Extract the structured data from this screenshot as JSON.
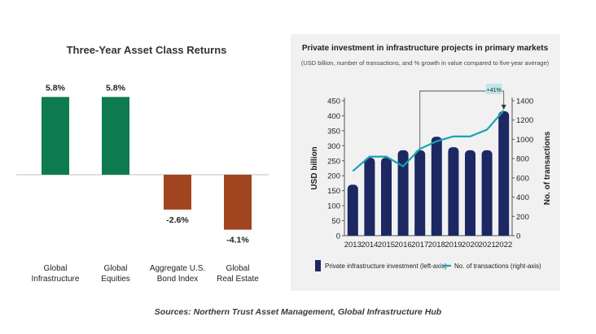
{
  "chart_data": [
    {
      "type": "bar",
      "title": "Three-Year Asset Class Returns",
      "categories": [
        "Global\nInfrastructure",
        "Global\nEquities",
        "Aggregate U.S.\nBond Index",
        "Global\nReal Estate"
      ],
      "values": [
        5.8,
        5.8,
        -2.6,
        -4.1
      ],
      "value_labels": [
        "5.8%",
        "5.8%",
        "-2.6%",
        "-4.1%"
      ],
      "colors": [
        "#0e7a4f",
        "#0e7a4f",
        "#a0451f",
        "#a0451f"
      ],
      "xlabel": "",
      "ylabel": "",
      "grid": false,
      "legend": "none"
    },
    {
      "type": "bar",
      "title": "Private investment in infrastructure projects in primary markets",
      "subtitle": "(USD billion, number of transactions, and % growth in value compared to five-year average)",
      "categories": [
        "2013",
        "2014",
        "2015",
        "2016",
        "2017",
        "2018",
        "2019",
        "2020",
        "2021",
        "2022"
      ],
      "series": [
        {
          "name": "Private infrastructure investment (left-axis)",
          "type": "bar",
          "axis": "left",
          "color": "#1d2761",
          "values": [
            170,
            260,
            260,
            285,
            285,
            330,
            295,
            285,
            285,
            415
          ]
        },
        {
          "name": "No. of transactions (right-axis)",
          "type": "line",
          "axis": "right",
          "color": "#17a3b4",
          "values": [
            670,
            820,
            820,
            720,
            900,
            980,
            1030,
            1030,
            1100,
            1300
          ]
        }
      ],
      "ylabel": "USD billion",
      "ylabel_right": "No. of transactions",
      "ylim": [
        0,
        450
      ],
      "ylim_right": [
        0,
        1400
      ],
      "yticks": [
        "0",
        "50",
        "100",
        "150",
        "200",
        "250",
        "300",
        "350",
        "400",
        "450"
      ],
      "yticks_right": [
        "0",
        "200",
        "400",
        "600",
        "800",
        "1000",
        "1200",
        "1400"
      ],
      "annotation": "+41%",
      "annotation_color": "#bfe6ec",
      "grid": false,
      "legend": "bottom"
    }
  ],
  "source_text": "Sources: Northern Trust Asset Management, Global Infrastructure Hub"
}
